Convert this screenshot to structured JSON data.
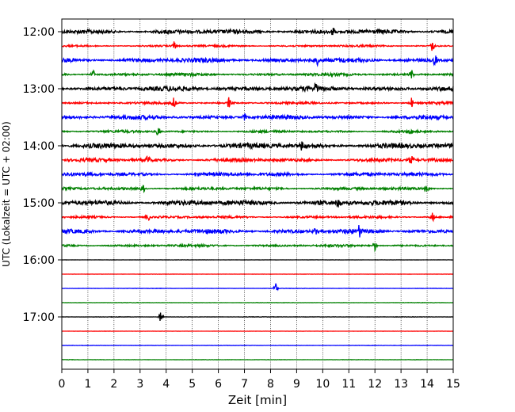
{
  "chart_data": {
    "type": "line",
    "xlabel": "Zeit  [min]",
    "ylabel": "UTC (Lokalzeit = UTC + 02:00)",
    "xlim": [
      0,
      15
    ],
    "x_ticks": [
      "0",
      "1",
      "2",
      "3",
      "4",
      "5",
      "6",
      "7",
      "8",
      "9",
      "10",
      "11",
      "12",
      "13",
      "14",
      "15"
    ],
    "y_tick_labels": [
      "12:00",
      "13:00",
      "14:00",
      "15:00",
      "16:00",
      "17:00"
    ],
    "grid": "vertical dotted",
    "color_cycle": [
      "#000000",
      "#ff0000",
      "#0000ff",
      "#008000"
    ],
    "series": [
      {
        "start": "12:00",
        "color": "#000000",
        "activity": 0.55,
        "spikes": [
          10.4
        ]
      },
      {
        "start": "12:15",
        "color": "#ff0000",
        "activity": 0.25,
        "spikes": [
          4.3,
          14.2
        ]
      },
      {
        "start": "12:30",
        "color": "#0000ff",
        "activity": 0.55,
        "spikes": [
          9.8,
          14.3
        ]
      },
      {
        "start": "12:45",
        "color": "#008000",
        "activity": 0.35,
        "spikes": [
          1.2,
          13.4
        ]
      },
      {
        "start": "13:00",
        "color": "#000000",
        "activity": 0.6,
        "spikes": [
          9.7
        ]
      },
      {
        "start": "13:15",
        "color": "#ff0000",
        "activity": 0.3,
        "spikes": [
          4.3,
          6.4,
          13.4
        ]
      },
      {
        "start": "13:30",
        "color": "#0000ff",
        "activity": 0.5,
        "spikes": [
          7.0
        ]
      },
      {
        "start": "13:45",
        "color": "#008000",
        "activity": 0.3,
        "spikes": [
          3.7,
          13.4
        ]
      },
      {
        "start": "14:00",
        "color": "#000000",
        "activity": 0.65,
        "spikes": [
          9.2
        ]
      },
      {
        "start": "14:15",
        "color": "#ff0000",
        "activity": 0.45,
        "spikes": [
          3.3,
          13.4
        ]
      },
      {
        "start": "14:30",
        "color": "#0000ff",
        "activity": 0.45,
        "spikes": []
      },
      {
        "start": "14:45",
        "color": "#008000",
        "activity": 0.35,
        "spikes": [
          3.1,
          14.0
        ]
      },
      {
        "start": "15:00",
        "color": "#000000",
        "activity": 0.65,
        "spikes": [
          10.6
        ]
      },
      {
        "start": "15:15",
        "color": "#ff0000",
        "activity": 0.3,
        "spikes": [
          3.3,
          14.2
        ]
      },
      {
        "start": "15:30",
        "color": "#0000ff",
        "activity": 0.55,
        "spikes": [
          9.7,
          11.4
        ]
      },
      {
        "start": "15:45",
        "color": "#008000",
        "activity": 0.3,
        "spikes": [
          12.0
        ]
      },
      {
        "start": "16:00",
        "color": "#000000",
        "activity": 0.03,
        "spikes": []
      },
      {
        "start": "16:15",
        "color": "#ff0000",
        "activity": 0.03,
        "spikes": []
      },
      {
        "start": "16:30",
        "color": "#0000ff",
        "activity": 0.05,
        "spikes": [
          8.2
        ]
      },
      {
        "start": "16:45",
        "color": "#008000",
        "activity": 0.05,
        "spikes": []
      },
      {
        "start": "17:00",
        "color": "#000000",
        "activity": 0.05,
        "spikes": [
          3.8
        ]
      },
      {
        "start": "17:15",
        "color": "#ff0000",
        "activity": 0.03,
        "spikes": []
      },
      {
        "start": "17:30",
        "color": "#0000ff",
        "activity": 0.05,
        "spikes": []
      },
      {
        "start": "17:45",
        "color": "#008000",
        "activity": 0.05,
        "spikes": []
      }
    ]
  }
}
